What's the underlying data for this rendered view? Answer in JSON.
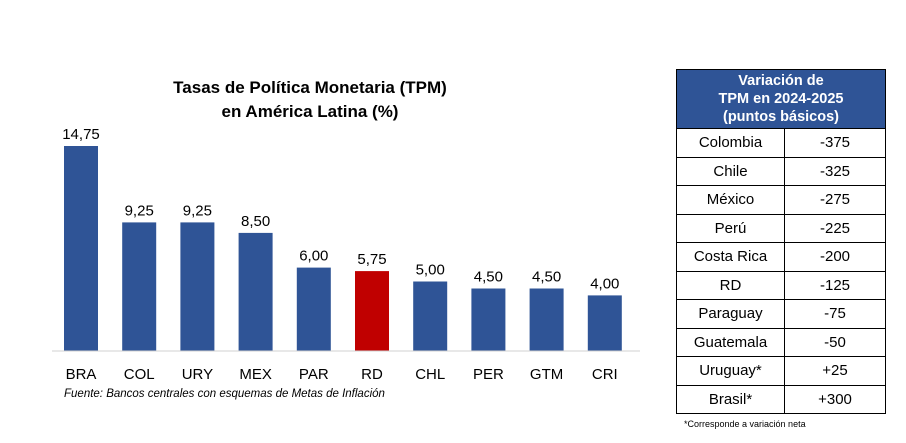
{
  "chart_data": {
    "type": "bar",
    "title": [
      "Tasas de Política Monetaria (TPM)",
      "en América Latina (%)"
    ],
    "categories": [
      "BRA",
      "COL",
      "URY",
      "MEX",
      "PAR",
      "RD",
      "CHL",
      "PER",
      "GTM",
      "CRI"
    ],
    "values": [
      14.75,
      9.25,
      9.25,
      8.5,
      6.0,
      5.75,
      5.0,
      4.5,
      4.5,
      4.0
    ],
    "value_labels": [
      "14,75",
      "9,25",
      "9,25",
      "8,50",
      "6,00",
      "5,75",
      "5,00",
      "4,50",
      "4,50",
      "4,00"
    ],
    "highlight_category": "RD",
    "colors": {
      "default": "#2f5496",
      "highlight": "#c00000"
    },
    "ylim": [
      0,
      15
    ],
    "grid": false,
    "legend": false
  },
  "source": "Fuente: Bancos centrales con esquemas de Metas de Inflación",
  "table": {
    "header": [
      "Variación de",
      "TPM en 2024-2025",
      "(puntos básicos)"
    ],
    "rows": [
      {
        "country": "Colombia",
        "value": "-375"
      },
      {
        "country": "Chile",
        "value": "-325"
      },
      {
        "country": "México",
        "value": "-275"
      },
      {
        "country": "Perú",
        "value": "-225"
      },
      {
        "country": "Costa Rica",
        "value": "-200"
      },
      {
        "country": "RD",
        "value": "-125"
      },
      {
        "country": "Paraguay",
        "value": "-75"
      },
      {
        "country": "Guatemala",
        "value": "-50"
      },
      {
        "country": "Uruguay*",
        "value": "+25"
      },
      {
        "country": "Brasil*",
        "value": "+300"
      }
    ],
    "note": "*Corresponde a variación neta"
  }
}
